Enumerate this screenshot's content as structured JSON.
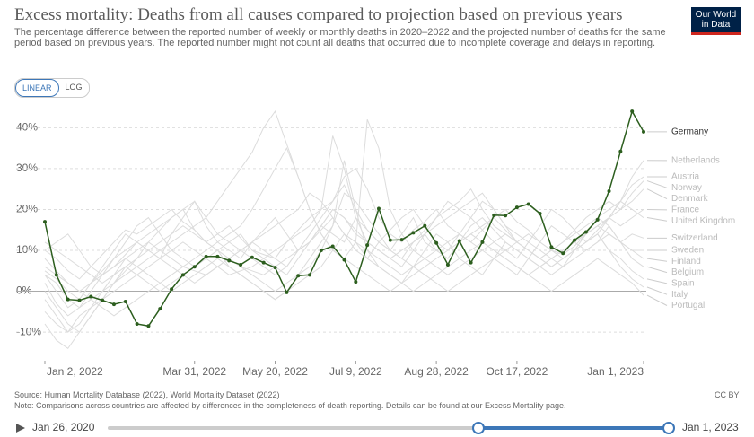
{
  "chart_data": {
    "type": "line",
    "title": "Excess mortality: Deaths from all causes compared to projection based on previous years",
    "subtitle": "The percentage difference between the reported number of weekly or monthly deaths in 2020–2022 and the projected number of deaths for the same period based on previous years. The reported number might not count all deaths that occurred due to incomplete coverage and delays in reporting.",
    "logo": [
      "Our World",
      "in Data"
    ],
    "scale_options": [
      "LINEAR",
      "LOG"
    ],
    "log_scale": false,
    "grid": true,
    "categories": [
      "Jan 2, 2022",
      null,
      null,
      null,
      null,
      null,
      null,
      null,
      null,
      null,
      null,
      null,
      null,
      "Mar 31, 2022",
      null,
      null,
      null,
      null,
      null,
      null,
      "May 20, 2022",
      null,
      null,
      null,
      null,
      null,
      null,
      "Jul 9, 2022",
      null,
      null,
      null,
      null,
      null,
      null,
      "Aug 28, 2022",
      null,
      null,
      null,
      null,
      null,
      null,
      "Oct 17, 2022",
      null,
      null,
      null,
      null,
      null,
      null,
      null,
      null,
      null,
      null,
      "Jan 1, 2023"
    ],
    "ylim": [
      -17,
      46
    ],
    "yticks": [
      {
        "value": -10,
        "label": "-10%"
      },
      {
        "value": 0,
        "label": "0%"
      },
      {
        "value": 10,
        "label": "10%"
      },
      {
        "value": 20,
        "label": "20%"
      },
      {
        "value": 30,
        "label": "30%"
      },
      {
        "value": 40,
        "label": "40%"
      }
    ],
    "series": [
      {
        "name": "Germany",
        "color": "#2c5e1e",
        "values": [
          17,
          4,
          -2,
          -2.2,
          -1.3,
          -2.2,
          -3.2,
          -2.5,
          -8,
          -8.5,
          -4.3,
          0.5,
          4,
          6,
          8.5,
          8.5,
          7.5,
          6.5,
          8.3,
          7,
          5.8,
          -0.3,
          3.8,
          4,
          10,
          11,
          7.7,
          2.3,
          11.3,
          20.2,
          12.5,
          12.6,
          14.3,
          16,
          11.8,
          6.5,
          12.3,
          7,
          12,
          18.6,
          18.5,
          20.5,
          21.3,
          19,
          10.8,
          9.3,
          12.5,
          14.5,
          17.5,
          24.5,
          34.2,
          44,
          39
        ]
      },
      {
        "name": "Netherlands",
        "color": "#dcdcdc",
        "values": [
          10,
          8,
          5,
          3,
          6,
          9,
          12,
          15,
          14,
          16,
          18,
          20,
          17,
          15,
          12,
          14,
          16,
          13,
          10,
          9,
          8,
          12,
          15,
          18,
          20,
          22,
          28,
          30,
          25,
          18,
          14,
          12,
          15,
          17,
          20,
          16,
          14,
          12,
          15,
          18,
          20,
          17,
          15,
          12,
          10,
          9,
          11,
          14,
          16,
          18,
          22,
          28,
          32
        ]
      },
      {
        "name": "Austria",
        "color": "#dcdcdc",
        "values": [
          5,
          3,
          0,
          -2,
          2,
          5,
          8,
          10,
          12,
          14,
          16,
          18,
          20,
          15,
          12,
          10,
          8,
          6,
          5,
          4,
          6,
          8,
          10,
          14,
          18,
          22,
          26,
          20,
          15,
          12,
          10,
          8,
          12,
          15,
          18,
          20,
          22,
          25,
          20,
          16,
          14,
          12,
          10,
          8,
          6,
          8,
          10,
          12,
          15,
          18,
          22,
          26,
          28
        ]
      },
      {
        "name": "Norway",
        "color": "#dcdcdc",
        "values": [
          2,
          -3,
          -6,
          -4,
          0,
          4,
          6,
          9,
          12,
          10,
          8,
          14,
          18,
          22,
          16,
          12,
          10,
          8,
          12,
          15,
          18,
          14,
          10,
          12,
          16,
          20,
          18,
          15,
          12,
          10,
          8,
          6,
          10,
          14,
          18,
          22,
          20,
          18,
          15,
          12,
          10,
          8,
          12,
          16,
          20,
          18,
          15,
          12,
          14,
          18,
          20,
          24,
          27
        ]
      },
      {
        "name": "Denmark",
        "color": "#dcdcdc",
        "values": [
          0,
          -4,
          -8,
          -10,
          -6,
          -2,
          2,
          5,
          8,
          12,
          15,
          18,
          20,
          22,
          18,
          14,
          12,
          10,
          8,
          6,
          4,
          6,
          10,
          12,
          15,
          18,
          14,
          10,
          8,
          12,
          15,
          18,
          20,
          16,
          12,
          10,
          14,
          18,
          22,
          20,
          16,
          12,
          10,
          8,
          10,
          12,
          15,
          18,
          20,
          22,
          20,
          22,
          25
        ]
      },
      {
        "name": "France",
        "color": "#dcdcdc",
        "values": [
          -5,
          -8,
          -10,
          -6,
          -4,
          -2,
          0,
          2,
          4,
          6,
          8,
          10,
          12,
          10,
          8,
          6,
          4,
          5,
          6,
          8,
          10,
          12,
          14,
          16,
          20,
          38,
          30,
          18,
          12,
          10,
          8,
          10,
          12,
          14,
          10,
          8,
          12,
          16,
          18,
          15,
          12,
          10,
          8,
          6,
          8,
          10,
          12,
          14,
          16,
          18,
          16,
          18,
          20
        ]
      },
      {
        "name": "United Kingdom",
        "color": "#dcdcdc",
        "values": [
          8,
          5,
          2,
          0,
          2,
          4,
          6,
          8,
          10,
          12,
          10,
          8,
          6,
          5,
          4,
          6,
          8,
          10,
          12,
          10,
          8,
          6,
          10,
          12,
          16,
          14,
          12,
          18,
          15,
          12,
          10,
          14,
          18,
          12,
          10,
          8,
          12,
          14,
          16,
          18,
          15,
          12,
          10,
          8,
          10,
          12,
          14,
          16,
          18,
          20,
          22,
          20,
          18
        ]
      },
      {
        "name": "Switzerland",
        "color": "#dcdcdc",
        "values": [
          4,
          0,
          -4,
          -2,
          2,
          6,
          10,
          14,
          12,
          10,
          8,
          6,
          4,
          2,
          4,
          6,
          8,
          10,
          12,
          14,
          16,
          18,
          20,
          24,
          22,
          18,
          14,
          12,
          10,
          8,
          6,
          4,
          6,
          8,
          10,
          12,
          14,
          12,
          10,
          8,
          6,
          4,
          8,
          12,
          16,
          14,
          12,
          10,
          12,
          14,
          12,
          14,
          13
        ]
      },
      {
        "name": "Sweden",
        "color": "#dcdcdc",
        "values": [
          -2,
          -6,
          -10,
          -8,
          -4,
          0,
          4,
          8,
          6,
          4,
          2,
          0,
          2,
          4,
          6,
          8,
          6,
          4,
          2,
          0,
          -2,
          0,
          2,
          4,
          6,
          10,
          14,
          12,
          8,
          6,
          4,
          2,
          0,
          2,
          4,
          6,
          8,
          10,
          12,
          10,
          8,
          6,
          4,
          6,
          8,
          10,
          12,
          14,
          16,
          14,
          12,
          10,
          10
        ]
      },
      {
        "name": "Finland",
        "color": "#dcdcdc",
        "values": [
          10,
          12,
          14,
          10,
          6,
          4,
          8,
          12,
          16,
          18,
          14,
          10,
          8,
          6,
          8,
          10,
          12,
          14,
          10,
          8,
          6,
          4,
          8,
          12,
          16,
          20,
          18,
          14,
          12,
          10,
          8,
          10,
          12,
          14,
          16,
          18,
          20,
          22,
          24,
          20,
          16,
          14,
          12,
          10,
          8,
          6,
          10,
          14,
          18,
          16,
          12,
          10,
          8
        ]
      },
      {
        "name": "Belgium",
        "color": "#dcdcdc",
        "values": [
          -8,
          -12,
          -14,
          -10,
          -6,
          -2,
          2,
          6,
          4,
          2,
          0,
          2,
          4,
          6,
          8,
          10,
          6,
          4,
          2,
          0,
          -2,
          0,
          4,
          8,
          12,
          16,
          32,
          20,
          10,
          6,
          4,
          2,
          6,
          10,
          14,
          12,
          8,
          6,
          4,
          8,
          12,
          10,
          8,
          6,
          4,
          6,
          8,
          10,
          12,
          16,
          12,
          8,
          6
        ]
      },
      {
        "name": "Spain",
        "color": "#dcdcdc",
        "values": [
          6,
          4,
          2,
          0,
          -2,
          -4,
          -6,
          -4,
          -2,
          0,
          2,
          4,
          6,
          8,
          10,
          12,
          14,
          16,
          20,
          25,
          30,
          35,
          28,
          20,
          14,
          10,
          8,
          12,
          42,
          35,
          20,
          14,
          10,
          8,
          6,
          4,
          6,
          8,
          10,
          12,
          14,
          12,
          10,
          8,
          6,
          8,
          10,
          12,
          14,
          10,
          8,
          5,
          3
        ]
      },
      {
        "name": "Italy",
        "color": "#dcdcdc",
        "values": [
          12,
          10,
          8,
          6,
          4,
          2,
          4,
          6,
          8,
          10,
          12,
          14,
          16,
          14,
          12,
          10,
          8,
          6,
          4,
          2,
          0,
          2,
          4,
          6,
          10,
          16,
          24,
          22,
          18,
          14,
          10,
          8,
          6,
          4,
          2,
          0,
          2,
          4,
          6,
          8,
          10,
          12,
          14,
          12,
          10,
          8,
          10,
          12,
          14,
          10,
          6,
          3,
          1
        ]
      },
      {
        "name": "Portugal",
        "color": "#dcdcdc",
        "values": [
          4,
          2,
          -2,
          -4,
          -2,
          0,
          2,
          4,
          6,
          8,
          10,
          12,
          14,
          16,
          18,
          22,
          26,
          30,
          34,
          40,
          44,
          36,
          28,
          20,
          14,
          10,
          8,
          6,
          4,
          2,
          0,
          2,
          4,
          6,
          8,
          10,
          12,
          14,
          12,
          10,
          8,
          6,
          4,
          2,
          0,
          2,
          4,
          6,
          8,
          6,
          4,
          2,
          -1
        ]
      }
    ],
    "source": "Source: Human Mortality Database (2022), World Mortality Dataset (2022)",
    "note": "Note: Comparisons across countries are affected by differences in the completeness of death reporting. Details can be found at our Excess Mortality page.",
    "license": "CC BY",
    "timeline": {
      "start": "Jan 26, 2020",
      "end": "Jan 1, 2023"
    }
  }
}
